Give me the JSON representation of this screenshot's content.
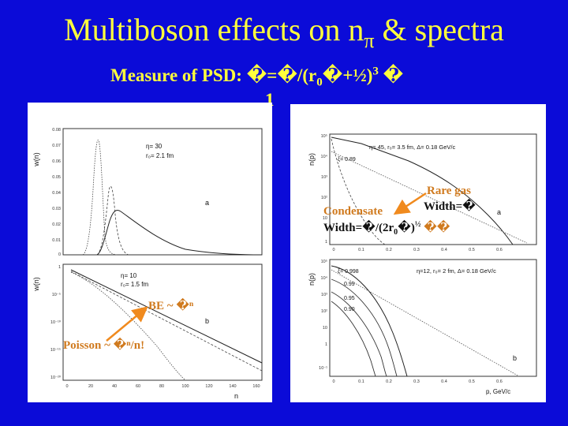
{
  "slide": {
    "title_main": "Multiboson effects on n",
    "title_sub": "π",
    "title_tail": " & spectra",
    "subtitle_prefix": "Measure of PSD: ",
    "subtitle_formula": "�=�/(r",
    "subtitle_sub": "0",
    "subtitle_formula2": "�+½)",
    "subtitle_sup": "3",
    "subtitle_tail": " �",
    "subtitle_line2": "1"
  },
  "left_figure": {
    "ylabel_top": "w(n)",
    "ylabel_bottom": "w(n)",
    "xlabel": "n",
    "top_legend": {
      "eta": "η= 30",
      "r": "r₀= 2.1 fm",
      "panel_letter": "a"
    },
    "bottom_legend": {
      "eta": "η= 10",
      "r": "r₀= 1.5 fm",
      "panel_letter": "b"
    },
    "top_yticks": [
      "0.08",
      "0.07",
      "0.06",
      "0.05",
      "0.04",
      "0.03",
      "0.02",
      "0.01",
      "0"
    ],
    "bottom_yticks": [
      "1",
      "10⁻⁵",
      "10⁻¹⁰",
      "10⁻¹⁵",
      "10⁻²⁰"
    ],
    "xticks": [
      "0",
      "20",
      "40",
      "60",
      "80",
      "100",
      "120",
      "140",
      "160"
    ]
  },
  "right_figure": {
    "ylabel_top": "n(p)",
    "ylabel_bottom": "n(p)",
    "xlabel": "p, GeV/c",
    "top_legend": "η= 45, r₀= 3.5 fm, Δ= 0.18 GeV/c",
    "top_xi": "ξ= 0.89",
    "top_letter": "a",
    "bottom_legend": "η=12, r₀= 2 fm, Δ= 0.18 GeV/c",
    "bottom_xi": [
      "ξ= 0.998",
      "0.99",
      "0.95",
      "0.90"
    ],
    "bottom_letter": "b",
    "xticks": [
      "0",
      "0.1",
      "0.2",
      "0.3",
      "0.4",
      "0.5",
      "0.6"
    ],
    "top_yticks": [
      "10⁵",
      "10⁴",
      "10³",
      "10²",
      "10",
      "1"
    ],
    "bottom_yticks": [
      "10⁵",
      "10⁴",
      "10³",
      "10²",
      "10",
      "1",
      "10⁻¹"
    ]
  },
  "annotations": {
    "be": "BE ~ �ⁿ",
    "poisson": "Poisson ~ �ⁿ/n!",
    "rare_gas": "Rare gas",
    "rare_width": "Width=�",
    "condensate": "Condensate",
    "condensate_width": "Width=�/(2r",
    "condensate_sub": "0",
    "condensate_width2": "�)",
    "condensate_sup": "½",
    "condensate_tail": " ��"
  },
  "colors": {
    "background": "#0b0bd8",
    "title": "#ffff3c",
    "annotation_orange": "#d07a1e",
    "arrow": "#f08a1e"
  }
}
